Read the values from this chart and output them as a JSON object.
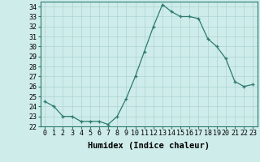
{
  "x": [
    0,
    1,
    2,
    3,
    4,
    5,
    6,
    7,
    8,
    9,
    10,
    11,
    12,
    13,
    14,
    15,
    16,
    17,
    18,
    19,
    20,
    21,
    22,
    23
  ],
  "y": [
    24.5,
    24.0,
    23.0,
    23.0,
    22.5,
    22.5,
    22.5,
    22.2,
    23.0,
    24.8,
    27.0,
    29.5,
    32.0,
    34.2,
    33.5,
    33.0,
    33.0,
    32.8,
    30.8,
    30.0,
    28.8,
    26.5,
    26.0,
    26.2
  ],
  "title": "",
  "xlabel": "Humidex (Indice chaleur)",
  "ylabel": "",
  "xlim": [
    -0.5,
    23.5
  ],
  "ylim": [
    22,
    34.5
  ],
  "yticks": [
    22,
    23,
    24,
    25,
    26,
    27,
    28,
    29,
    30,
    31,
    32,
    33,
    34
  ],
  "xticks": [
    0,
    1,
    2,
    3,
    4,
    5,
    6,
    7,
    8,
    9,
    10,
    11,
    12,
    13,
    14,
    15,
    16,
    17,
    18,
    19,
    20,
    21,
    22,
    23
  ],
  "line_color": "#2d7a6e",
  "marker": "+",
  "bg_color": "#ceecea",
  "grid_color": "#acd4d1",
  "label_fontsize": 7.5,
  "tick_fontsize": 6.0
}
